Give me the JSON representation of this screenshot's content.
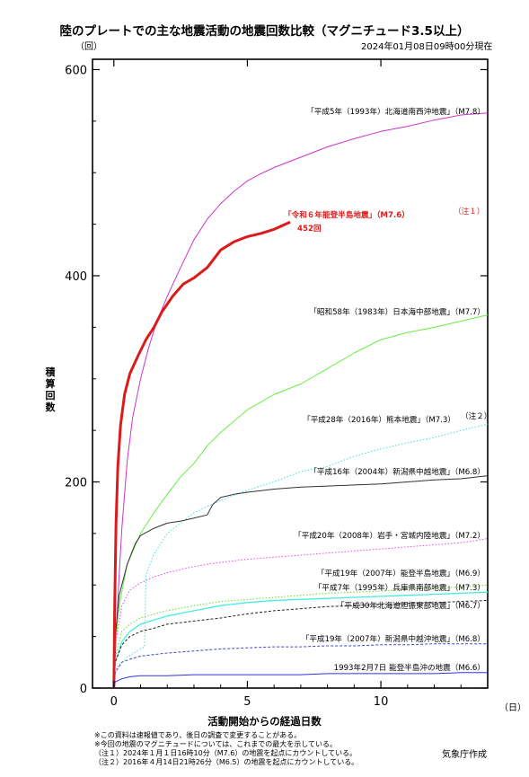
{
  "header": {
    "title": "陸のプレートでの主な地震活動の地震回数比較（マグニチュード3.5以上）",
    "y_unit": "（回）",
    "timestamp": "2024年01月08日09時00分現在"
  },
  "footer": {
    "notes": [
      "※この資料は速報値であり、後日の調査で変更することがある。",
      "※今回の地震のマグニチュードについては、これまでの最大を示している。",
      "（注１）2024年１月１日16時10分（M7.6）の地震を起点にカウントしている。",
      "（注２）2016年４月14日21時26分（M6.5）の地震を起点にカウントしている。"
    ],
    "credit": "気象庁作成"
  },
  "chart_data": {
    "type": "line",
    "title": "陸のプレートでの主な地震活動の地震回数比較（マグニチュード3.5以上）",
    "xlabel": "活動開始からの経過日数",
    "ylabel": "積算回数",
    "x_unit": "（日）",
    "y_unit": "（回）",
    "xlim": [
      -0.8,
      14
    ],
    "ylim": [
      0,
      610
    ],
    "xticks": [
      0,
      5,
      10
    ],
    "yticks": [
      0,
      200,
      400,
      600
    ],
    "xtick_labels": [
      "0",
      "5",
      "10"
    ],
    "ytick_labels": [
      "0",
      "200",
      "400",
      "600"
    ],
    "grid": false,
    "legend": "inline labels at right of each line",
    "current_label": "452回",
    "series": [
      {
        "name": "「平成5年（1993年）北海道南西沖地震」（M7.8）",
        "color": "#cc33cc",
        "dash": "solid",
        "width": 1,
        "x": [
          0,
          0.03,
          0.1,
          0.2,
          0.3,
          0.5,
          0.7,
          1.0,
          1.3,
          1.6,
          2.0,
          2.5,
          3.0,
          3.5,
          4.0,
          4.5,
          5.0,
          5.5,
          6.0,
          7.0,
          8.0,
          9.0,
          10.0,
          11.0,
          12.0,
          13.0,
          14.0
        ],
        "y": [
          0,
          20,
          60,
          110,
          155,
          220,
          262,
          300,
          330,
          355,
          380,
          408,
          435,
          455,
          470,
          482,
          492,
          499,
          505,
          515,
          525,
          533,
          540,
          545,
          551,
          556,
          558
        ]
      },
      {
        "name": "「令和６年能登半島地震」（M7.6）",
        "color": "#dd1a1a",
        "dash": "solid",
        "width": 3,
        "x": [
          0,
          0.03,
          0.08,
          0.15,
          0.25,
          0.4,
          0.6,
          0.9,
          1.2,
          1.5,
          1.8,
          2.2,
          2.6,
          3.0,
          3.5,
          4.0,
          4.5,
          5.0,
          5.5,
          6.0,
          6.6
        ],
        "y": [
          0,
          80,
          160,
          215,
          255,
          285,
          305,
          322,
          338,
          350,
          365,
          380,
          392,
          398,
          408,
          425,
          433,
          438,
          441,
          445,
          452
        ]
      },
      {
        "name": "「昭和58年（1983年）日本海中部地震」（M7.7）",
        "color": "#66ee44",
        "dash": "solid",
        "width": 1,
        "x": [
          0,
          0.05,
          0.2,
          0.5,
          1.0,
          1.5,
          2.0,
          2.5,
          3.0,
          3.5,
          4.0,
          5.0,
          6.0,
          7.0,
          8.0,
          9.0,
          10.0,
          11.0,
          12.0,
          13.0,
          14.0
        ],
        "y": [
          0,
          40,
          80,
          120,
          150,
          170,
          188,
          205,
          218,
          235,
          248,
          270,
          285,
          295,
          310,
          325,
          338,
          345,
          350,
          356,
          362
        ]
      },
      {
        "name": "「平成28年（2016年）熊本地震」（M7.3）",
        "note": "（注２）",
        "color": "#44dddd",
        "dash": "dotted",
        "width": 1,
        "x": [
          0,
          0.1,
          0.5,
          1.0,
          1.15,
          1.2,
          1.5,
          2.0,
          2.5,
          3.0,
          4.0,
          5.0,
          6.0,
          7.0,
          8.0,
          9.0,
          10.0,
          11.0,
          12.0,
          13.0,
          14.0
        ],
        "y": [
          0,
          20,
          30,
          38,
          40,
          110,
          130,
          150,
          160,
          170,
          182,
          192,
          200,
          210,
          215,
          225,
          232,
          238,
          243,
          250,
          256
        ]
      },
      {
        "name": "「平成16年（2004年）新潟県中越地震」（M6.8）",
        "color": "#333333",
        "dash": "solid",
        "width": 1,
        "x": [
          0,
          0.05,
          0.2,
          0.5,
          0.8,
          1.0,
          1.5,
          2.0,
          2.5,
          3.0,
          3.5,
          3.7,
          4.0,
          4.5,
          5.0,
          6.0,
          7.0,
          8.0,
          9.0,
          10.0,
          11.0,
          12.0,
          13.0,
          14.0
        ],
        "y": [
          0,
          50,
          90,
          120,
          140,
          148,
          155,
          160,
          162,
          165,
          168,
          178,
          185,
          188,
          190,
          193,
          195,
          196,
          197,
          198,
          200,
          202,
          203,
          206
        ]
      },
      {
        "name": "「平成20年（2008年）岩手・宮城内陸地震」（M7.2）",
        "color": "#ee44ee",
        "dash": "dotted",
        "width": 1,
        "x": [
          0,
          0.05,
          0.3,
          0.6,
          1.0,
          1.5,
          2.0,
          3.0,
          4.0,
          5.0,
          6.0,
          7.0,
          8.0,
          9.0,
          10.0,
          11.0,
          12.0,
          13.0,
          14.0
        ],
        "y": [
          0,
          40,
          80,
          95,
          102,
          108,
          112,
          118,
          122,
          125,
          127,
          129,
          131,
          133,
          135,
          137,
          139,
          141,
          145
        ]
      },
      {
        "name": "「平成19年（2007年）能登半島地震」（M6.9）",
        "color": "#66dd22",
        "dash": "dotted",
        "width": 1,
        "x": [
          0,
          0.05,
          0.3,
          0.6,
          1.0,
          1.5,
          2.0,
          3.0,
          4.0,
          5.0,
          6.0,
          7.0,
          8.0,
          9.0,
          10.0,
          11.0,
          12.0,
          13.0,
          14.0
        ],
        "y": [
          0,
          30,
          55,
          62,
          68,
          72,
          75,
          80,
          84,
          86,
          88,
          90,
          92,
          93,
          94,
          96,
          97,
          98,
          100
        ]
      },
      {
        "name": "「平成7年（1995年）兵庫県南部地震」（M7.3）",
        "color": "#44eedd",
        "dash": "solid",
        "width": 1.3,
        "x": [
          0,
          0.05,
          0.3,
          0.6,
          1.0,
          1.5,
          2.0,
          3.0,
          4.0,
          5.0,
          6.0,
          7.0,
          8.0,
          9.0,
          10.0,
          11.0,
          12.0,
          13.0,
          14.0
        ],
        "y": [
          0,
          25,
          45,
          55,
          62,
          66,
          70,
          75,
          80,
          83,
          85,
          86,
          87,
          88,
          89,
          90,
          91,
          92,
          93
        ]
      },
      {
        "name": "「平成30年北海道胆振東部地震」（M6.7）",
        "color": "#222222",
        "dash": "dashed",
        "width": 1,
        "x": [
          0,
          0.05,
          0.3,
          0.6,
          1.0,
          1.5,
          2.0,
          3.0,
          4.0,
          5.0,
          6.0,
          7.0,
          8.0,
          9.0,
          10.0,
          11.0,
          12.0,
          13.0,
          14.0
        ],
        "y": [
          0,
          25,
          42,
          50,
          55,
          58,
          62,
          65,
          68,
          72,
          75,
          77,
          79,
          80,
          81,
          82,
          83,
          84,
          85
        ]
      },
      {
        "name": "「平成19年（2007年）新潟県中越沖地震」（M6.8）",
        "color": "#4444cc",
        "dash": "dashed",
        "width": 1,
        "x": [
          0,
          0.05,
          0.3,
          0.6,
          1.0,
          2.0,
          3.0,
          4.0,
          5.0,
          6.0,
          7.0,
          8.0,
          9.0,
          10.0,
          11.0,
          12.0,
          13.0,
          14.0
        ],
        "y": [
          0,
          15,
          25,
          28,
          31,
          34,
          36,
          38,
          39,
          40,
          40,
          41,
          41,
          42,
          42,
          43,
          43,
          43
        ]
      },
      {
        "name": "1993年2月7日 能登半島沖の地震（M6.6）",
        "color": "#3333dd",
        "dash": "solid",
        "width": 1,
        "x": [
          0,
          0.05,
          0.3,
          0.6,
          1.0,
          2.0,
          3.0,
          4.0,
          5.0,
          6.0,
          7.0,
          8.0,
          9.0,
          10.0,
          11.0,
          12.0,
          13.0,
          14.0
        ],
        "y": [
          0,
          6,
          9,
          11,
          12,
          12,
          13,
          13,
          13,
          13,
          13,
          14,
          14,
          14,
          14,
          14,
          15,
          15
        ]
      }
    ]
  }
}
